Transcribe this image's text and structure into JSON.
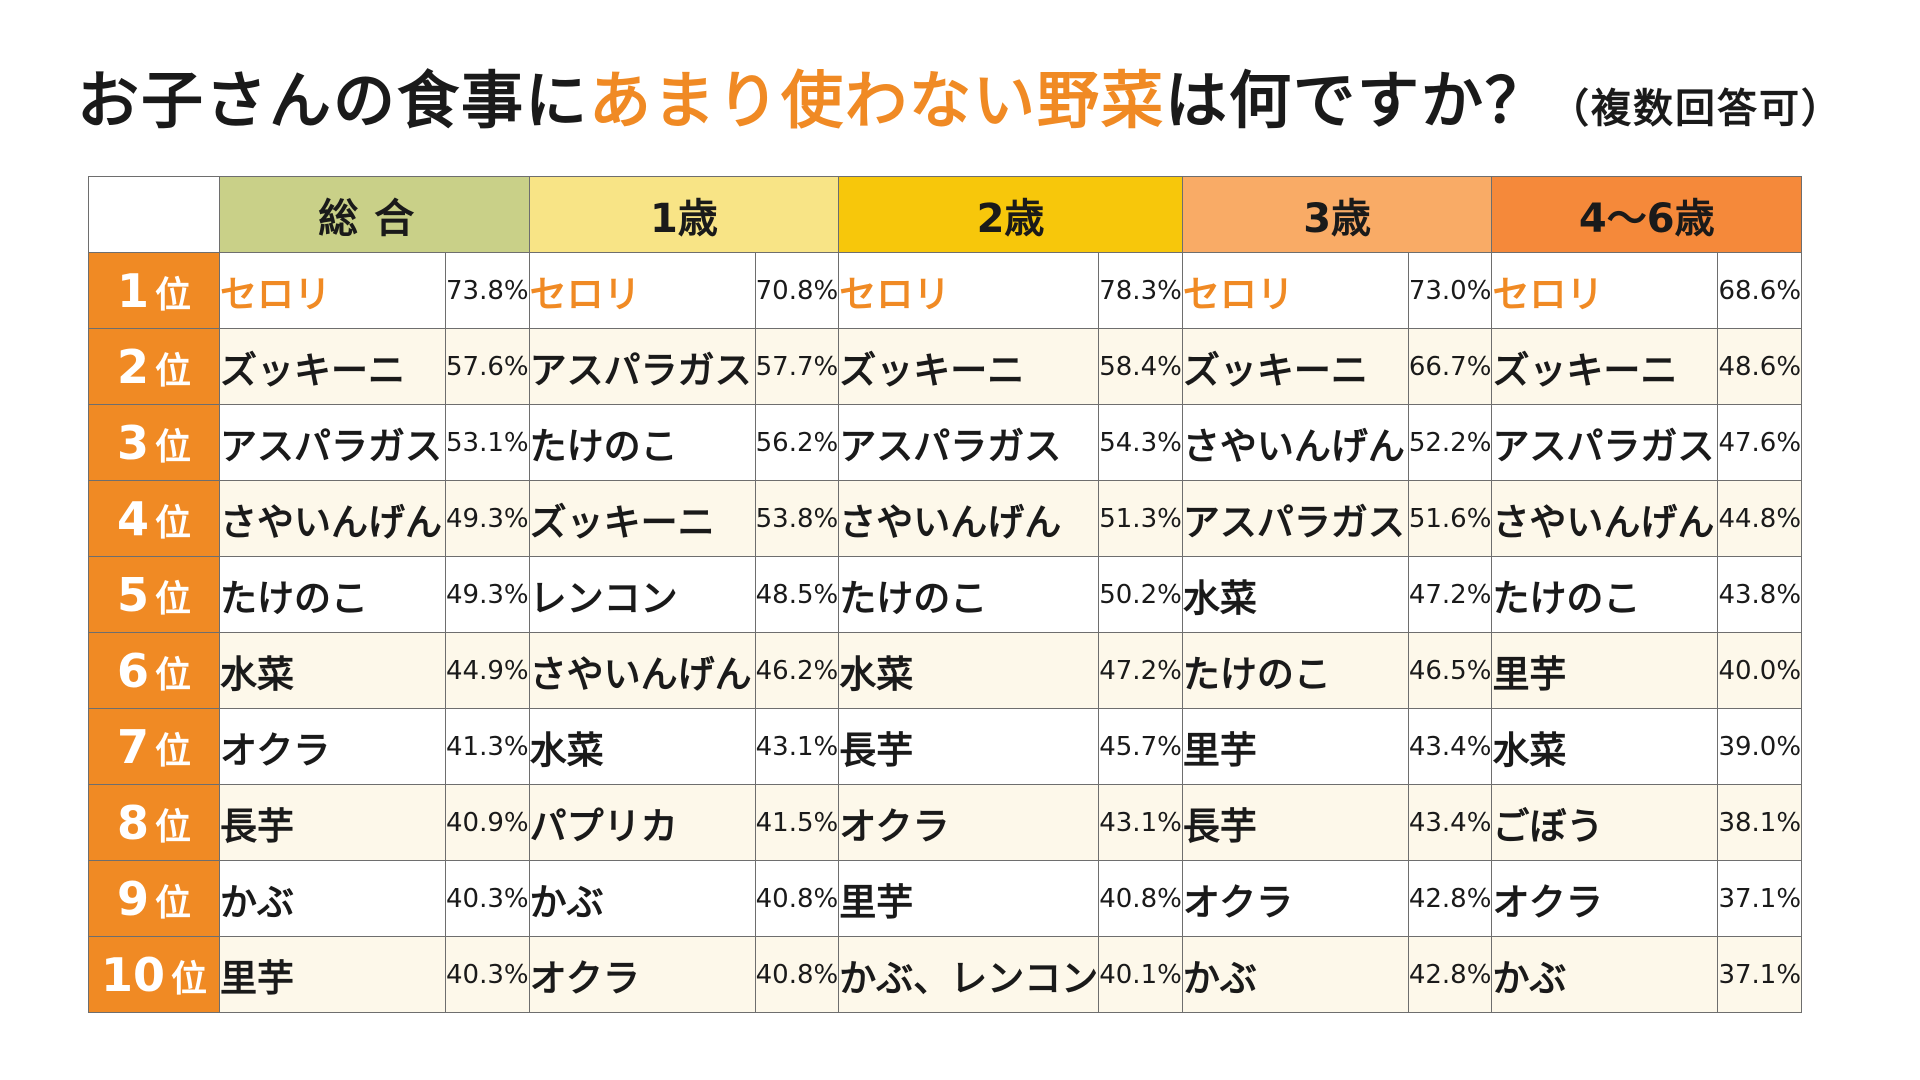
{
  "title": {
    "part1": "お子さんの食事に",
    "accent": "あまり使わない野菜",
    "part2": "は何ですか？",
    "note": "（複数回答可）"
  },
  "chart_data": {
    "type": "table",
    "rank_unit": "位",
    "columns": [
      "総合",
      "1歳",
      "2歳",
      "3歳",
      "4〜6歳"
    ],
    "rows": [
      {
        "rank": "1",
        "cells": [
          {
            "name": "セロリ",
            "value": "73.8%"
          },
          {
            "name": "セロリ",
            "value": "70.8%"
          },
          {
            "name": "セロリ",
            "value": "78.3%"
          },
          {
            "name": "セロリ",
            "value": "73.0%"
          },
          {
            "name": "セロリ",
            "value": "68.6%"
          }
        ]
      },
      {
        "rank": "2",
        "cells": [
          {
            "name": "ズッキーニ",
            "value": "57.6%"
          },
          {
            "name": "アスパラガス",
            "value": "57.7%"
          },
          {
            "name": "ズッキーニ",
            "value": "58.4%"
          },
          {
            "name": "ズッキーニ",
            "value": "66.7%"
          },
          {
            "name": "ズッキーニ",
            "value": "48.6%"
          }
        ]
      },
      {
        "rank": "3",
        "cells": [
          {
            "name": "アスパラガス",
            "value": "53.1%"
          },
          {
            "name": "たけのこ",
            "value": "56.2%"
          },
          {
            "name": "アスパラガス",
            "value": "54.3%"
          },
          {
            "name": "さやいんげん",
            "value": "52.2%"
          },
          {
            "name": "アスパラガス",
            "value": "47.6%"
          }
        ]
      },
      {
        "rank": "4",
        "cells": [
          {
            "name": "さやいんげん",
            "value": "49.3%"
          },
          {
            "name": "ズッキーニ",
            "value": "53.8%"
          },
          {
            "name": "さやいんげん",
            "value": "51.3%"
          },
          {
            "name": "アスパラガス",
            "value": "51.6%"
          },
          {
            "name": "さやいんげん",
            "value": "44.8%"
          }
        ]
      },
      {
        "rank": "5",
        "cells": [
          {
            "name": "たけのこ",
            "value": "49.3%"
          },
          {
            "name": "レンコン",
            "value": "48.5%"
          },
          {
            "name": "たけのこ",
            "value": "50.2%"
          },
          {
            "name": "水菜",
            "value": "47.2%"
          },
          {
            "name": "たけのこ",
            "value": "43.8%"
          }
        ]
      },
      {
        "rank": "6",
        "cells": [
          {
            "name": "水菜",
            "value": "44.9%"
          },
          {
            "name": "さやいんげん",
            "value": "46.2%"
          },
          {
            "name": "水菜",
            "value": "47.2%"
          },
          {
            "name": "たけのこ",
            "value": "46.5%"
          },
          {
            "name": "里芋",
            "value": "40.0%"
          }
        ]
      },
      {
        "rank": "7",
        "cells": [
          {
            "name": "オクラ",
            "value": "41.3%"
          },
          {
            "name": "水菜",
            "value": "43.1%"
          },
          {
            "name": "長芋",
            "value": "45.7%"
          },
          {
            "name": "里芋",
            "value": "43.4%"
          },
          {
            "name": "水菜",
            "value": "39.0%"
          }
        ]
      },
      {
        "rank": "8",
        "cells": [
          {
            "name": "長芋",
            "value": "40.9%"
          },
          {
            "name": "パプリカ",
            "value": "41.5%"
          },
          {
            "name": "オクラ",
            "value": "43.1%"
          },
          {
            "name": "長芋",
            "value": "43.4%"
          },
          {
            "name": "ごぼう",
            "value": "38.1%"
          }
        ]
      },
      {
        "rank": "9",
        "cells": [
          {
            "name": "かぶ",
            "value": "40.3%"
          },
          {
            "name": "かぶ",
            "value": "40.8%"
          },
          {
            "name": "里芋",
            "value": "40.8%"
          },
          {
            "name": "オクラ",
            "value": "42.8%"
          },
          {
            "name": "オクラ",
            "value": "37.1%"
          }
        ]
      },
      {
        "rank": "10",
        "cells": [
          {
            "name": "里芋",
            "value": "40.3%"
          },
          {
            "name": "オクラ",
            "value": "40.8%"
          },
          {
            "name": "かぶ、レンコン",
            "value": "40.1%"
          },
          {
            "name": "かぶ",
            "value": "42.8%"
          },
          {
            "name": "かぶ",
            "value": "37.1%"
          }
        ]
      }
    ]
  },
  "colors": {
    "accent": "#f08a24",
    "header_total": "#c9d088",
    "header_age1": "#f8e486",
    "header_age2": "#f7c70b",
    "header_age3": "#f9ab66",
    "header_age4_6": "#f5893a",
    "row_alt": "#fdf8ea"
  }
}
